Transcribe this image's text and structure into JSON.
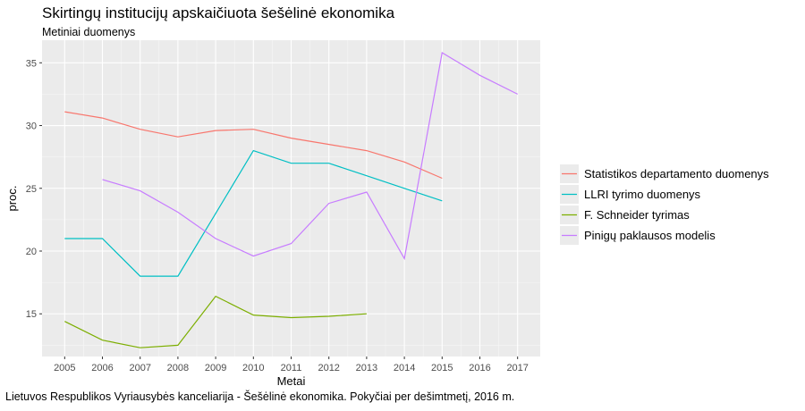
{
  "chart_data": {
    "type": "line",
    "title": "Skirtingų institucijų apskaičiuota šešėlinė ekonomika",
    "subtitle": "Metiniai duomenys",
    "caption": "Lietuvos Respublikos Vyriausybės kanceliarija - Šešėlinė ekonomika. Pokyčiai per dešimtmetį, 2016 m.",
    "xlabel": "Metai",
    "ylabel": "proc.",
    "x": [
      2005,
      2006,
      2007,
      2008,
      2009,
      2010,
      2011,
      2012,
      2013,
      2014,
      2015,
      2016,
      2017
    ],
    "x_ticks": [
      "2005",
      "2006",
      "2007",
      "2008",
      "2009",
      "2010",
      "2011",
      "2012",
      "2013",
      "2014",
      "2015",
      "2016",
      "2017"
    ],
    "y_ticks": [
      "15",
      "20",
      "25",
      "30",
      "35"
    ],
    "xlim": [
      2004.4,
      2017.6
    ],
    "ylim": [
      11.6,
      36.8
    ],
    "grid": true,
    "legend_position": "right",
    "series": [
      {
        "name": "Statistikos departamento duomenys",
        "color": "#F8766D",
        "values": [
          31.1,
          30.6,
          29.7,
          29.1,
          29.6,
          29.7,
          29.0,
          28.5,
          28.0,
          27.1,
          25.8,
          null,
          null
        ]
      },
      {
        "name": "LLRI tyrimo duomenys",
        "color": "#00BFC4",
        "values": [
          21.0,
          21.0,
          18.0,
          18.0,
          23.0,
          28.0,
          27.0,
          27.0,
          26.0,
          25.0,
          24.0,
          null,
          null
        ]
      },
      {
        "name": "F. Schneider tyrimas",
        "color": "#7CAE00",
        "values": [
          14.4,
          12.9,
          12.3,
          12.5,
          16.4,
          14.9,
          14.7,
          14.8,
          15.0,
          null,
          null,
          null,
          null
        ]
      },
      {
        "name": "Pinigų paklausos modelis",
        "color": "#C77CFF",
        "values": [
          null,
          25.7,
          24.8,
          23.1,
          21.0,
          19.6,
          20.6,
          23.8,
          24.7,
          19.4,
          35.8,
          34.0,
          32.5
        ]
      }
    ]
  }
}
